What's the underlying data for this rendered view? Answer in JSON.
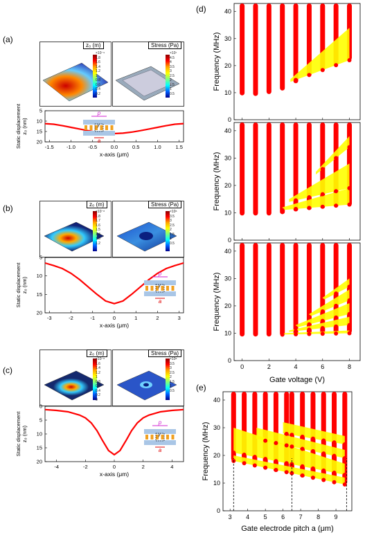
{
  "panels": {
    "a": {
      "label": "(a)",
      "snap_left_title": "z₀ (m)",
      "snap_right_title": "Stress (Pa)",
      "cbar_left": [
        "×10⁻⁹",
        "1.8",
        "1.6",
        "1.4",
        "1.2",
        "1",
        "0.8",
        "0.6",
        "0.4",
        "0.2"
      ],
      "cbar_right": [
        "×10⁷",
        "4.5",
        "4",
        "3.5",
        "3",
        "2.5",
        "2",
        "1.5",
        "1",
        "0.5"
      ]
    },
    "b": {
      "label": "(b)",
      "snap_left_title": "z₀ (m)",
      "snap_right_title": "Stress (Pa)",
      "cbar_left": [
        "×10⁻⁸",
        "1.8",
        "1.7",
        "1.6",
        "1.5",
        "1.4",
        "1.3",
        "1.2"
      ],
      "cbar_right": [
        "×10⁶",
        "3.5",
        "3",
        "2.5",
        "2",
        "1.5",
        "1",
        "0.5"
      ]
    },
    "c": {
      "label": "(c)",
      "snap_left_title": "z₀ (m)",
      "snap_right_title": "Stress (Pa)",
      "cbar_left": [
        "×10⁻⁸",
        "1.6",
        "1.4",
        "1.2",
        "1",
        "0.8",
        "0.6",
        "0.4",
        "0.2",
        "0"
      ],
      "cbar_right": [
        "×10⁶",
        "3.5",
        "3",
        "2.5",
        "2",
        "1.5",
        "1",
        "0.5"
      ]
    },
    "d": {
      "label": "(d)"
    },
    "e": {
      "label": "(e)"
    }
  },
  "inset_labels": {
    "p": "p",
    "y": "y",
    "a": "a"
  },
  "chart_data": [
    {
      "id": "a",
      "type": "line",
      "xlabel": "x-axis (μm)",
      "ylabel_lines": [
        "Static displacement",
        "z₀ (nm)"
      ],
      "xlim": [
        -1.6,
        1.6
      ],
      "ylim": [
        20,
        5
      ],
      "xticks": [
        "-1.5",
        "-1.0",
        "-0.5",
        "0.0",
        "0.5",
        "1.0",
        "1.5"
      ],
      "xtick_vals": [
        -1.5,
        -1,
        -0.5,
        0,
        0.5,
        1,
        1.5
      ],
      "yticks": [
        "5",
        "10",
        "15",
        "20"
      ],
      "ytick_vals": [
        5,
        10,
        15,
        20
      ],
      "series": [
        {
          "color": "#ff0000",
          "x": [
            -1.6,
            -1.4,
            -1.2,
            -1.0,
            -0.8,
            -0.6,
            -0.4,
            -0.2,
            0,
            0.2,
            0.4,
            0.6,
            0.8,
            1.0,
            1.2,
            1.4,
            1.6
          ],
          "y": [
            11.2,
            11.5,
            12.2,
            13.0,
            13.8,
            14.6,
            15.3,
            15.8,
            16.0,
            15.8,
            15.3,
            14.6,
            13.8,
            13.0,
            12.2,
            11.5,
            11.2
          ]
        }
      ]
    },
    {
      "id": "b",
      "type": "line",
      "xlabel": "x-axis (μm)",
      "ylabel_lines": [
        "Static displacement",
        "z₀ (nm)"
      ],
      "xlim": [
        -3.2,
        3.2
      ],
      "ylim": [
        20,
        5
      ],
      "xticks": [
        "-3",
        "-2",
        "-1",
        "0",
        "1",
        "2",
        "3"
      ],
      "xtick_vals": [
        -3,
        -2,
        -1,
        0,
        1,
        2,
        3
      ],
      "yticks": [
        "5",
        "10",
        "15",
        "20"
      ],
      "ytick_vals": [
        5,
        10,
        15,
        20
      ],
      "series": [
        {
          "color": "#ff0000",
          "x": [
            -3.2,
            -2.8,
            -2.4,
            -2.0,
            -1.6,
            -1.2,
            -0.8,
            -0.4,
            0,
            0.4,
            0.8,
            1.2,
            1.6,
            2.0,
            2.4,
            2.8,
            3.2
          ],
          "y": [
            6.5,
            7.2,
            8.0,
            9.3,
            11.0,
            13.0,
            15.0,
            16.8,
            17.5,
            16.8,
            15.0,
            13.0,
            11.0,
            9.3,
            8.0,
            7.2,
            6.5
          ]
        }
      ]
    },
    {
      "id": "c",
      "type": "line",
      "xlabel": "x-axis (μm)",
      "ylabel_lines": [
        "Static displacement",
        "z₀ (nm)"
      ],
      "xlim": [
        -4.8,
        4.8
      ],
      "ylim": [
        20,
        0
      ],
      "xticks": [
        "-4",
        "-2",
        "0",
        "2",
        "4"
      ],
      "xtick_vals": [
        -4,
        -2,
        0,
        2,
        4
      ],
      "yticks": [
        "0",
        "5",
        "10",
        "15",
        "20"
      ],
      "ytick_vals": [
        0,
        5,
        10,
        15,
        20
      ],
      "series": [
        {
          "color": "#ff0000",
          "x": [
            -4.8,
            -4.0,
            -3.2,
            -2.4,
            -2.0,
            -1.6,
            -1.2,
            -0.8,
            -0.4,
            0,
            0.4,
            0.8,
            1.2,
            1.6,
            2.0,
            2.4,
            3.2,
            4.0,
            4.8
          ],
          "y": [
            1.2,
            1.5,
            2.0,
            3.2,
            4.2,
            6.0,
            8.8,
            12.5,
            16.0,
            17.5,
            16.0,
            12.5,
            8.8,
            6.0,
            4.2,
            3.2,
            2.0,
            1.5,
            1.2
          ]
        }
      ]
    },
    {
      "id": "d",
      "type": "scatter",
      "ylabel": "Frequency (MHz)",
      "xlabel": "Gate voltage (V)",
      "subplots": 3,
      "xlim": [
        -0.6,
        8.8
      ],
      "ylim": [
        0,
        43
      ],
      "xticks": [
        "0",
        "2",
        "4",
        "6",
        "8"
      ],
      "xtick_vals": [
        0,
        2,
        4,
        6,
        8
      ],
      "yticks": [
        "0",
        "10",
        "20",
        "30",
        "40"
      ],
      "ytick_vals": [
        0,
        10,
        20,
        30,
        40
      ],
      "voltages": [
        0,
        1,
        2,
        3,
        4,
        5,
        6,
        7,
        8
      ],
      "column_min": [
        [
          9,
          8.8,
          9.5,
          10.8,
          13.5,
          16,
          18,
          20,
          22
        ],
        [
          9,
          9,
          9,
          9.5,
          10.5,
          11,
          11.5,
          12,
          12.5
        ],
        [
          8.8,
          8.8,
          8.8,
          9,
          9,
          9.3,
          9.5,
          9.7,
          10
        ]
      ],
      "bands": [
        [
          {
            "v0": 3.6,
            "v1": 8,
            "lo0": 14,
            "lo1": 22,
            "hi0": 15,
            "hi1": 34
          }
        ],
        [
          {
            "v0": 3,
            "v1": 8,
            "lo0": 11,
            "lo1": 13,
            "hi0": 12,
            "hi1": 19
          },
          {
            "v0": 3.5,
            "v1": 8,
            "lo0": 14,
            "lo1": 19,
            "hi0": 15,
            "hi1": 28
          },
          {
            "v0": 5.5,
            "v1": 8,
            "lo0": 24,
            "lo1": 34,
            "hi0": 25,
            "hi1": 38
          }
        ],
        [
          {
            "v0": 3,
            "v1": 8,
            "lo0": 9.5,
            "lo1": 10,
            "hi0": 10,
            "hi1": 11
          },
          {
            "v0": 3.5,
            "v1": 8,
            "lo0": 10.5,
            "lo1": 13,
            "hi0": 11,
            "hi1": 16
          },
          {
            "v0": 4,
            "v1": 8,
            "lo0": 12,
            "lo1": 17,
            "hi0": 13,
            "hi1": 21
          },
          {
            "v0": 5,
            "v1": 8,
            "lo0": 16,
            "lo1": 22,
            "hi0": 17,
            "hi1": 26
          },
          {
            "v0": 6,
            "v1": 8,
            "lo0": 22,
            "lo1": 27,
            "hi0": 23,
            "hi1": 30
          }
        ]
      ]
    },
    {
      "id": "e",
      "type": "scatter",
      "ylabel": "Frequency (MHz)",
      "xlabel": "Gate electrode pitch a (μm)",
      "xlim": [
        2.6,
        9.9
      ],
      "ylim": [
        0,
        43
      ],
      "xticks": [
        "3",
        "4",
        "5",
        "6",
        "7",
        "8",
        "9"
      ],
      "xtick_vals": [
        3,
        4,
        5,
        6,
        7,
        8,
        9
      ],
      "yticks": [
        "0",
        "10",
        "20",
        "30",
        "40"
      ],
      "ytick_vals": [
        0,
        10,
        20,
        30,
        40
      ],
      "pitches": [
        3.2,
        3.8,
        4.4,
        5.0,
        5.6,
        6.2,
        6.5,
        7.1,
        7.7,
        8.3,
        8.9,
        9.5
      ],
      "column_min": [
        18,
        17,
        16,
        15,
        14,
        13.5,
        13,
        12,
        11.5,
        11,
        10.5,
        9.5
      ],
      "bands": [
        {
          "a0": 3.2,
          "a1": 9.5,
          "lo0": 18,
          "lo1": 9.5,
          "hi0": 20,
          "hi1": 12
        },
        {
          "a0": 3.2,
          "a1": 9.5,
          "lo0": 21,
          "lo1": 13,
          "hi0": 30,
          "hi1": 17
        },
        {
          "a0": 4.5,
          "a1": 9.5,
          "lo0": 26,
          "lo1": 19,
          "hi0": 30,
          "hi1": 22
        },
        {
          "a0": 6,
          "a1": 9.5,
          "lo0": 28,
          "lo1": 24,
          "hi0": 32,
          "hi1": 27
        }
      ],
      "dashed_x": [
        3.2,
        6.5,
        9.6
      ]
    }
  ]
}
